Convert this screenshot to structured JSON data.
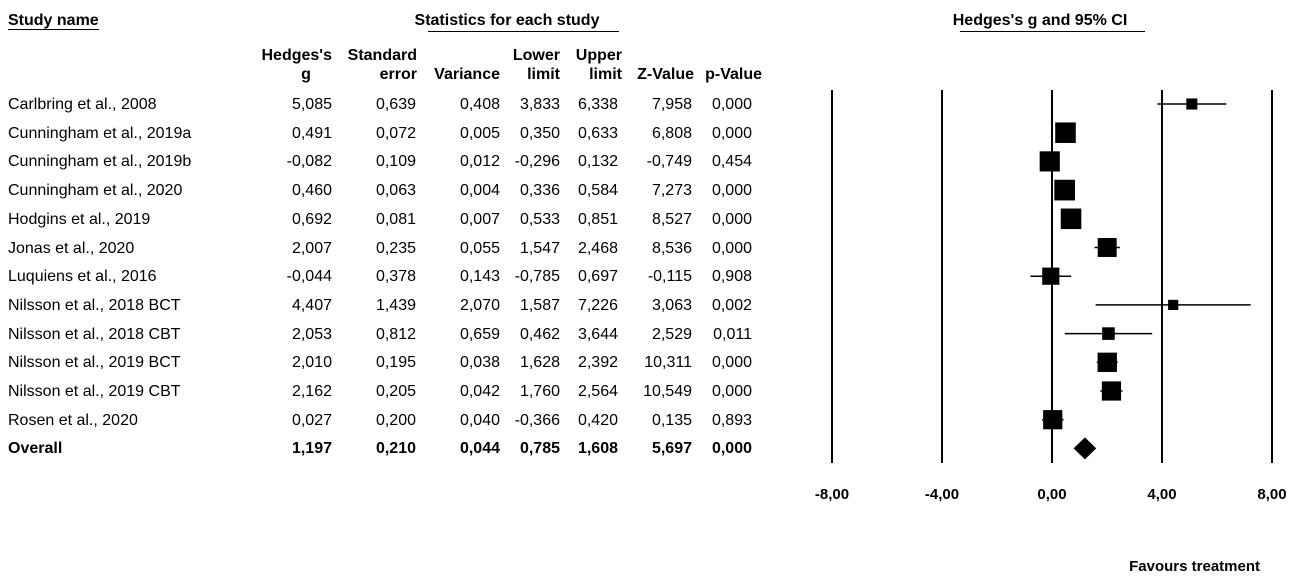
{
  "headers": {
    "study_name": "Study name",
    "statistics": "Statistics for each study",
    "ci": "Hedges's g and 95% CI"
  },
  "columns": [
    {
      "line1": "Hedges's",
      "line2": "g"
    },
    {
      "line1": "Standard",
      "line2": "error"
    },
    {
      "line1": "",
      "line2": "Variance"
    },
    {
      "line1": "Lower",
      "line2": "limit"
    },
    {
      "line1": "Upper",
      "line2": "limit"
    },
    {
      "line1": "",
      "line2": "Z-Value"
    },
    {
      "line1": "",
      "line2": "p-Value"
    }
  ],
  "rows": [
    {
      "name": "Carlbring et al., 2008",
      "g": "5,085",
      "se": "0,639",
      "var": "0,408",
      "lower": "3,833",
      "upper": "6,338",
      "z": "7,958",
      "p": "0,000"
    },
    {
      "name": "Cunningham et al., 2019a",
      "g": "0,491",
      "se": "0,072",
      "var": "0,005",
      "lower": "0,350",
      "upper": "0,633",
      "z": "6,808",
      "p": "0,000"
    },
    {
      "name": "Cunningham et al., 2019b",
      "g": "-0,082",
      "se": "0,109",
      "var": "0,012",
      "lower": "-0,296",
      "upper": "0,132",
      "z": "-0,749",
      "p": "0,454"
    },
    {
      "name": "Cunningham et al., 2020",
      "g": "0,460",
      "se": "0,063",
      "var": "0,004",
      "lower": "0,336",
      "upper": "0,584",
      "z": "7,273",
      "p": "0,000"
    },
    {
      "name": "Hodgins et al., 2019",
      "g": "0,692",
      "se": "0,081",
      "var": "0,007",
      "lower": "0,533",
      "upper": "0,851",
      "z": "8,527",
      "p": "0,000"
    },
    {
      "name": "Jonas et al., 2020",
      "g": "2,007",
      "se": "0,235",
      "var": "0,055",
      "lower": "1,547",
      "upper": "2,468",
      "z": "8,536",
      "p": "0,000"
    },
    {
      "name": "Luquiens et al., 2016",
      "g": "-0,044",
      "se": "0,378",
      "var": "0,143",
      "lower": "-0,785",
      "upper": "0,697",
      "z": "-0,115",
      "p": "0,908"
    },
    {
      "name": "Nilsson et al., 2018 BCT",
      "g": "4,407",
      "se": "1,439",
      "var": "2,070",
      "lower": "1,587",
      "upper": "7,226",
      "z": "3,063",
      "p": "0,002"
    },
    {
      "name": "Nilsson et al., 2018 CBT",
      "g": "2,053",
      "se": "0,812",
      "var": "0,659",
      "lower": "0,462",
      "upper": "3,644",
      "z": "2,529",
      "p": "0,011"
    },
    {
      "name": "Nilsson et al., 2019 BCT",
      "g": "2,010",
      "se": "0,195",
      "var": "0,038",
      "lower": "1,628",
      "upper": "2,392",
      "z": "10,311",
      "p": "0,000"
    },
    {
      "name": "Nilsson et al., 2019 CBT",
      "g": "2,162",
      "se": "0,205",
      "var": "0,042",
      "lower": "1,760",
      "upper": "2,564",
      "z": "10,549",
      "p": "0,000"
    },
    {
      "name": "Rosen et al., 2020",
      "g": "0,027",
      "se": "0,200",
      "var": "0,040",
      "lower": "-0,366",
      "upper": "0,420",
      "z": "0,135",
      "p": "0,893"
    }
  ],
  "overall": {
    "name": "Overall",
    "g": "1,197",
    "se": "0,210",
    "var": "0,044",
    "lower": "0,785",
    "upper": "1,608",
    "z": "5,697",
    "p": "0,000"
  },
  "axis_ticks": [
    "-8,00",
    "-4,00",
    "0,00",
    "4,00",
    "8,00"
  ],
  "favours_label": "Favours treatment",
  "chart_data": {
    "type": "scatter",
    "title": "Hedges's g and 95% CI",
    "xlim": [
      -8,
      8
    ],
    "ticks": [
      -8,
      -4,
      0,
      4,
      8
    ],
    "studies": [
      {
        "name": "Carlbring et al., 2008",
        "g": 5.085,
        "lower": 3.833,
        "upper": 6.338,
        "weight": 2.3
      },
      {
        "name": "Cunningham et al., 2019a",
        "g": 0.491,
        "lower": 0.35,
        "upper": 0.633,
        "weight": 9.3
      },
      {
        "name": "Cunningham et al., 2019b",
        "g": -0.082,
        "lower": -0.296,
        "upper": 0.132,
        "weight": 9.0
      },
      {
        "name": "Cunningham et al., 2020",
        "g": 0.46,
        "lower": 0.336,
        "upper": 0.584,
        "weight": 9.4
      },
      {
        "name": "Hodgins et al., 2019",
        "g": 0.692,
        "lower": 0.533,
        "upper": 0.851,
        "weight": 9.3
      },
      {
        "name": "Jonas et al., 2020",
        "g": 2.007,
        "lower": 1.547,
        "upper": 2.468,
        "weight": 8.1
      },
      {
        "name": "Luquiens et al., 2016",
        "g": -0.044,
        "lower": -0.785,
        "upper": 0.697,
        "weight": 6.8
      },
      {
        "name": "Nilsson et al., 2018 BCT",
        "g": 4.407,
        "lower": 1.587,
        "upper": 7.226,
        "weight": 1.6
      },
      {
        "name": "Nilsson et al., 2018 CBT",
        "g": 2.053,
        "lower": 0.462,
        "upper": 3.644,
        "weight": 3.4
      },
      {
        "name": "Nilsson et al., 2019 BCT",
        "g": 2.01,
        "lower": 1.628,
        "upper": 2.392,
        "weight": 8.4
      },
      {
        "name": "Nilsson et al., 2019 CBT",
        "g": 2.162,
        "lower": 1.76,
        "upper": 2.564,
        "weight": 8.3
      },
      {
        "name": "Rosen et al., 2020",
        "g": 0.027,
        "lower": -0.366,
        "upper": 0.42,
        "weight": 8.3
      }
    ],
    "overall": {
      "name": "Overall",
      "g": 1.197,
      "lower": 0.785,
      "upper": 1.608
    },
    "xlabel": "Favours treatment"
  }
}
